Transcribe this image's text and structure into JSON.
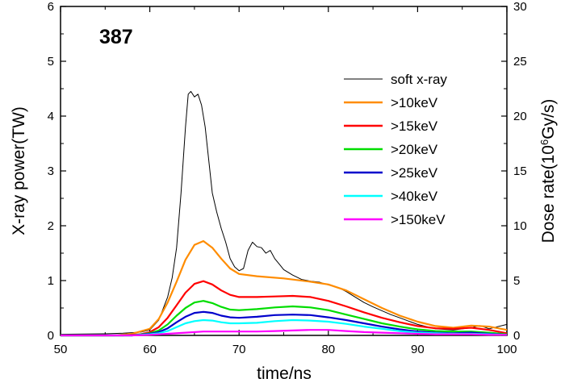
{
  "chart_data": {
    "type": "line",
    "annotation": "387",
    "xlabel": "time/ns",
    "ylabel": "X-ray power(TW)",
    "y2label_prefix": "Dose rate(10",
    "y2label_exp": "6",
    "y2label_suffix": "Gy/s)",
    "xlim": [
      50,
      100
    ],
    "ylim": [
      0,
      6
    ],
    "y2lim": [
      0,
      30
    ],
    "x_ticks": [
      50,
      60,
      70,
      80,
      90,
      100
    ],
    "y_ticks": [
      0,
      1,
      2,
      3,
      4,
      5,
      6
    ],
    "y2_ticks": [
      0,
      5,
      10,
      15,
      20,
      25,
      30
    ],
    "legend_position": "upper-right",
    "grid": false,
    "series": [
      {
        "name": "soft x-ray",
        "axis": "left",
        "color": "#000000",
        "x": [
          50,
          55,
          57,
          58,
          59,
          60,
          61,
          62,
          62.5,
          63,
          63.5,
          64,
          64.3,
          64.6,
          65,
          65.4,
          65.8,
          66.2,
          66.6,
          67,
          67.5,
          68,
          68.5,
          69,
          69.5,
          70,
          70.5,
          71,
          71.5,
          72,
          72.5,
          73,
          73.5,
          74,
          74.5,
          75,
          76,
          77,
          78,
          79,
          80,
          81,
          82,
          83,
          84,
          85,
          86,
          87,
          88,
          89,
          90,
          92,
          94,
          96,
          97,
          98,
          100
        ],
        "y": [
          0.02,
          0.03,
          0.04,
          0.05,
          0.06,
          0.1,
          0.28,
          0.7,
          1.05,
          1.6,
          2.6,
          3.8,
          4.4,
          4.45,
          4.35,
          4.4,
          4.2,
          3.8,
          3.2,
          2.6,
          2.25,
          1.95,
          1.7,
          1.4,
          1.25,
          1.18,
          1.22,
          1.55,
          1.7,
          1.62,
          1.6,
          1.5,
          1.55,
          1.4,
          1.3,
          1.2,
          1.1,
          1.02,
          0.99,
          0.97,
          0.92,
          0.88,
          0.8,
          0.7,
          0.6,
          0.52,
          0.45,
          0.38,
          0.32,
          0.26,
          0.2,
          0.12,
          0.1,
          0.14,
          0.18,
          0.12,
          0.2
        ]
      },
      {
        "name": ">10keV",
        "axis": "left",
        "color": "#ff8c00",
        "x": [
          50,
          56,
          58,
          60,
          61,
          62,
          63,
          64,
          65,
          66,
          67,
          68,
          69,
          70,
          72,
          75,
          78,
          80,
          82,
          84,
          86,
          88,
          90,
          92,
          94,
          96,
          98,
          100
        ],
        "y": [
          0,
          0,
          0.03,
          0.12,
          0.3,
          0.6,
          0.98,
          1.38,
          1.65,
          1.72,
          1.6,
          1.4,
          1.22,
          1.12,
          1.08,
          1.04,
          0.98,
          0.93,
          0.82,
          0.66,
          0.5,
          0.36,
          0.25,
          0.17,
          0.14,
          0.18,
          0.16,
          0.1
        ]
      },
      {
        "name": ">15keV",
        "axis": "left",
        "color": "#ff0000",
        "x": [
          50,
          57,
          59,
          60,
          61,
          62,
          63,
          64,
          65,
          66,
          67,
          68,
          69,
          70,
          72,
          74,
          76,
          78,
          80,
          82,
          84,
          86,
          88,
          90,
          92,
          94,
          96,
          98,
          100
        ],
        "y": [
          0,
          0,
          0.02,
          0.06,
          0.15,
          0.32,
          0.55,
          0.78,
          0.94,
          0.99,
          0.93,
          0.82,
          0.74,
          0.7,
          0.7,
          0.71,
          0.72,
          0.7,
          0.63,
          0.53,
          0.42,
          0.32,
          0.24,
          0.17,
          0.13,
          0.12,
          0.14,
          0.1,
          0.04
        ]
      },
      {
        "name": ">20keV",
        "axis": "left",
        "color": "#00dd00",
        "x": [
          50,
          58,
          60,
          61,
          62,
          63,
          64,
          65,
          66,
          67,
          68,
          69,
          70,
          72,
          74,
          76,
          78,
          80,
          82,
          84,
          86,
          88,
          90,
          92,
          94,
          96,
          98,
          100
        ],
        "y": [
          0,
          0,
          0.04,
          0.09,
          0.2,
          0.36,
          0.5,
          0.6,
          0.63,
          0.59,
          0.52,
          0.47,
          0.46,
          0.48,
          0.51,
          0.53,
          0.51,
          0.46,
          0.38,
          0.3,
          0.22,
          0.16,
          0.11,
          0.08,
          0.07,
          0.07,
          0.05,
          0.02
        ]
      },
      {
        "name": ">25keV",
        "axis": "left",
        "color": "#0000cc",
        "x": [
          50,
          58,
          60,
          61,
          62,
          63,
          64,
          65,
          66,
          67,
          68,
          69,
          70,
          72,
          74,
          76,
          78,
          80,
          82,
          84,
          86,
          88,
          90,
          92,
          94,
          96,
          98,
          100
        ],
        "y": [
          0,
          0,
          0.03,
          0.06,
          0.13,
          0.24,
          0.34,
          0.41,
          0.43,
          0.41,
          0.36,
          0.33,
          0.32,
          0.34,
          0.37,
          0.38,
          0.37,
          0.33,
          0.28,
          0.22,
          0.16,
          0.11,
          0.07,
          0.05,
          0.04,
          0.05,
          0.03,
          0.01
        ]
      },
      {
        "name": ">40keV",
        "axis": "left",
        "color": "#00ffff",
        "x": [
          50,
          58,
          60,
          61,
          62,
          63,
          64,
          65,
          66,
          67,
          68,
          69,
          70,
          72,
          74,
          76,
          78,
          80,
          82,
          84,
          86,
          88,
          90,
          92,
          94,
          96,
          98,
          100
        ],
        "y": [
          0,
          0,
          0.02,
          0.04,
          0.08,
          0.15,
          0.22,
          0.26,
          0.28,
          0.27,
          0.24,
          0.22,
          0.22,
          0.23,
          0.26,
          0.28,
          0.27,
          0.25,
          0.21,
          0.16,
          0.12,
          0.08,
          0.05,
          0.04,
          0.03,
          0.03,
          0.02,
          0.01
        ]
      },
      {
        "name": ">150keV",
        "axis": "left",
        "color": "#ff00ff",
        "x": [
          50,
          58,
          60,
          62,
          64,
          66,
          68,
          70,
          72,
          74,
          76,
          78,
          80,
          82,
          84,
          86,
          88,
          90,
          92,
          94,
          96,
          98,
          100
        ],
        "y": [
          0,
          0,
          0.01,
          0.03,
          0.05,
          0.07,
          0.07,
          0.07,
          0.07,
          0.08,
          0.09,
          0.1,
          0.1,
          0.08,
          0.06,
          0.05,
          0.04,
          0.03,
          0.02,
          0.02,
          0.02,
          0.01,
          0.01
        ]
      }
    ]
  }
}
